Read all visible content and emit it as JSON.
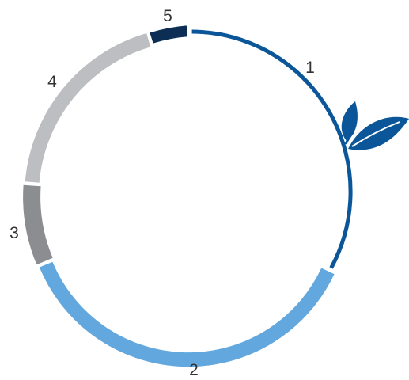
{
  "diagram": {
    "segments": [
      {
        "label": "1",
        "color": "#0b5699"
      },
      {
        "label": "2",
        "color": "#62a8de"
      },
      {
        "label": "3",
        "color": "#8c8d90"
      },
      {
        "label": "4",
        "color": "#bdbec2"
      },
      {
        "label": "5",
        "color": "#0c2e54"
      }
    ],
    "leaf_icon": {
      "name": "leaf-icon",
      "color": "#0b5699"
    }
  }
}
